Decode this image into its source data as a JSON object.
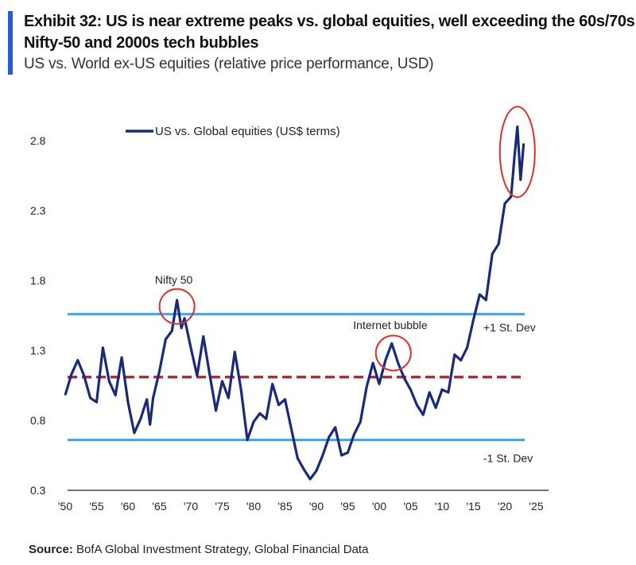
{
  "header": {
    "title": "Exhibit 32: US is near extreme peaks vs. global equities, well exceeding the 60s/70s Nifty-50 and 2000s tech bubbles",
    "subtitle": "US vs. World ex-US equities (relative price performance, USD)"
  },
  "source": {
    "label": "Source:",
    "text": " BofA Global Investment Strategy, Global Financial Data"
  },
  "chart_data": {
    "type": "line",
    "title": "",
    "xlabel": "",
    "ylabel": "",
    "xlim": [
      1950,
      2025
    ],
    "ylim": [
      0.3,
      3.0
    ],
    "y_ticks": [
      2.8,
      2.3,
      1.8,
      1.3,
      0.8,
      0.3
    ],
    "x_ticks": [
      {
        "value": 1950,
        "label": "'50"
      },
      {
        "value": 1955,
        "label": "'55"
      },
      {
        "value": 1960,
        "label": "'60"
      },
      {
        "value": 1965,
        "label": "'65"
      },
      {
        "value": 1970,
        "label": "'70"
      },
      {
        "value": 1975,
        "label": "'75"
      },
      {
        "value": 1980,
        "label": "'80"
      },
      {
        "value": 1985,
        "label": "'85"
      },
      {
        "value": 1990,
        "label": "'90"
      },
      {
        "value": 1995,
        "label": "'95"
      },
      {
        "value": 2000,
        "label": "'00"
      },
      {
        "value": 2005,
        "label": "'05"
      },
      {
        "value": 2010,
        "label": "'10"
      },
      {
        "value": 2015,
        "label": "'15"
      },
      {
        "value": 2020,
        "label": "'20"
      },
      {
        "value": 2025,
        "label": "'25"
      }
    ],
    "grid": false,
    "legend": {
      "position": "top-center"
    },
    "series": [
      {
        "name": "US vs. Global equities (US$ terms)",
        "color": "#1a2a78",
        "x": [
          1950,
          1951,
          1952,
          1953,
          1954,
          1955,
          1956,
          1957,
          1958,
          1959,
          1960,
          1961,
          1962,
          1963,
          1963.5,
          1964,
          1965,
          1966,
          1967,
          1967.8,
          1968.5,
          1969,
          1970,
          1971,
          1972,
          1973,
          1974,
          1975,
          1976,
          1977,
          1978,
          1979,
          1980,
          1981,
          1982,
          1983,
          1984,
          1985,
          1986,
          1987,
          1988,
          1989,
          1990,
          1991,
          1992,
          1993,
          1994,
          1995,
          1996,
          1997,
          1998,
          1999,
          2000,
          2001,
          2002,
          2003,
          2004,
          2005,
          2006,
          2007,
          2008,
          2009,
          2010,
          2011,
          2012,
          2013,
          2014,
          2015,
          2016,
          2017,
          2018,
          2019,
          2020,
          2021,
          2021.5,
          2022,
          2022.5,
          2023
        ],
        "y": [
          0.98,
          1.13,
          1.23,
          1.12,
          0.96,
          0.93,
          1.32,
          1.08,
          0.98,
          1.25,
          0.93,
          0.71,
          0.81,
          0.95,
          0.77,
          0.96,
          1.15,
          1.38,
          1.44,
          1.66,
          1.46,
          1.53,
          1.32,
          1.12,
          1.4,
          1.13,
          0.87,
          1.08,
          0.96,
          1.29,
          1.02,
          0.66,
          0.79,
          0.85,
          0.81,
          1.06,
          0.91,
          0.95,
          0.74,
          0.53,
          0.45,
          0.38,
          0.44,
          0.55,
          0.68,
          0.75,
          0.55,
          0.57,
          0.7,
          0.79,
          1.04,
          1.21,
          1.06,
          1.23,
          1.35,
          1.21,
          1.1,
          1.02,
          0.91,
          0.84,
          1.0,
          0.89,
          1.02,
          1.0,
          1.27,
          1.23,
          1.32,
          1.52,
          1.7,
          1.66,
          1.99,
          2.06,
          2.35,
          2.4,
          2.67,
          2.9,
          2.52,
          2.78
        ]
      }
    ],
    "reference_lines": [
      {
        "label": "+1 St. Dev",
        "value": 1.56,
        "color": "#4a9fe0",
        "style": "solid"
      },
      {
        "label": "",
        "value": 1.11,
        "color": "#b02a35",
        "style": "dashed"
      },
      {
        "label": "-1 St. Dev",
        "value": 0.66,
        "color": "#4a9fe0",
        "style": "solid"
      }
    ],
    "annotations": [
      {
        "text": "Nifty 50",
        "x": 1967.8,
        "y": 1.66
      },
      {
        "text": "Internet bubble",
        "x": 2002,
        "y": 1.35
      },
      {
        "text": "",
        "x": 2022,
        "y": 2.72
      }
    ]
  }
}
